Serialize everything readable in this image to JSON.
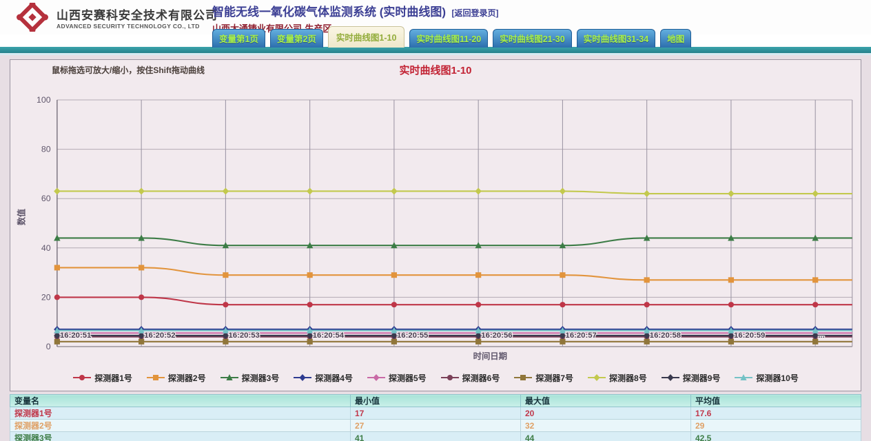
{
  "header": {
    "company_cn": "山西安赛科安全技术有限公司",
    "company_en": "ADVANCED SECURITY TECHNOLOGY CO., LTD",
    "title": "智能无线一氧化碳气体监测系统 (实时曲线图)",
    "back_link": "[返回登录页]",
    "subtitle": "山西大通铸业有限公司-生产区",
    "logo_color": "#b5313d"
  },
  "tabs": [
    {
      "key": "variables-page-1",
      "label": "变量第1页",
      "active": false
    },
    {
      "key": "variables-page-2",
      "label": "变量第2页",
      "active": false
    },
    {
      "key": "realtime-curve-1-10",
      "label": "实时曲线图1-10",
      "active": true
    },
    {
      "key": "realtime-curve-11-20",
      "label": "实时曲线图11-20",
      "active": false
    },
    {
      "key": "realtime-curve-21-30",
      "label": "实时曲线图21-30",
      "active": false
    },
    {
      "key": "realtime-curve-31-34",
      "label": "实时曲线图31-34",
      "active": false
    },
    {
      "key": "map",
      "label": "地图",
      "active": false
    }
  ],
  "chart": {
    "hint": "鼠标拖选可放大/缩小，按住Shift拖动曲线"
  },
  "chart_data": {
    "type": "line",
    "title": "实时曲线图1-10",
    "xlabel": "时间日期",
    "ylabel": "数值",
    "ylim": [
      0,
      100
    ],
    "yticks": [
      0,
      20,
      40,
      60,
      80,
      100
    ],
    "grid": true,
    "legend_position": "bottom",
    "x": [
      "16:20:51",
      "16:20:52",
      "16:20:53",
      "16:20:54",
      "16:20:55",
      "16:20:56",
      "16:20:57",
      "16:20:58",
      "16:20:59",
      "..."
    ],
    "series": [
      {
        "key": "detector-1",
        "name": "探测器1号",
        "color": "#bf3648",
        "marker": "circle",
        "values": [
          20,
          20,
          17,
          17,
          17,
          17,
          17,
          17,
          17,
          17
        ]
      },
      {
        "key": "detector-2",
        "name": "探测器2号",
        "color": "#e2943c",
        "marker": "square",
        "values": [
          32,
          32,
          29,
          29,
          29,
          29,
          29,
          27,
          27,
          27
        ]
      },
      {
        "key": "detector-3",
        "name": "探测器3号",
        "color": "#3c7c46",
        "marker": "triangle",
        "values": [
          44,
          44,
          41,
          41,
          41,
          41,
          41,
          44,
          44,
          44
        ]
      },
      {
        "key": "detector-4",
        "name": "探测器4号",
        "color": "#2e3b90",
        "marker": "diamond",
        "values": [
          7,
          7,
          7,
          7,
          7,
          7,
          7,
          7,
          7,
          7
        ]
      },
      {
        "key": "detector-5",
        "name": "探测器5号",
        "color": "#c96aa6",
        "marker": "diamond",
        "values": [
          5.5,
          5.5,
          5.5,
          5.5,
          5.5,
          5.5,
          5.5,
          5.5,
          5.5,
          5.5
        ]
      },
      {
        "key": "detector-6",
        "name": "探测器6号",
        "color": "#7b4058",
        "marker": "circle",
        "values": [
          4,
          4,
          4,
          4,
          4,
          4,
          4,
          4,
          4,
          4
        ]
      },
      {
        "key": "detector-7",
        "name": "探测器7号",
        "color": "#90763a",
        "marker": "square",
        "values": [
          2,
          2,
          2,
          2,
          2,
          2,
          2,
          2,
          2,
          2
        ]
      },
      {
        "key": "detector-8",
        "name": "探测器8号",
        "color": "#c3c94e",
        "marker": "diamond",
        "values": [
          63,
          63,
          63,
          63,
          63,
          63,
          63,
          62,
          62,
          62
        ]
      },
      {
        "key": "detector-9",
        "name": "探测器9号",
        "color": "#3a3a4e",
        "marker": "diamond",
        "values": [
          4.5,
          4.5,
          4.5,
          4.5,
          4.5,
          4.5,
          4.5,
          4.5,
          4.5,
          4.5
        ]
      },
      {
        "key": "detector-10",
        "name": "探测器10号",
        "color": "#74c2c6",
        "marker": "triangle",
        "values": [
          6.5,
          6.5,
          6.5,
          6.5,
          6.5,
          6.5,
          6.5,
          6.5,
          6.5,
          6.5
        ]
      }
    ]
  },
  "table": {
    "columns": [
      "变量名",
      "最小值",
      "最大值",
      "平均值"
    ],
    "rows": [
      {
        "key": "detector-1",
        "name": "探测器1号",
        "min": "17",
        "max": "20",
        "avg": "17.6",
        "color": "#c0374a"
      },
      {
        "key": "detector-2",
        "name": "探测器2号",
        "min": "27",
        "max": "32",
        "avg": "29",
        "color": "#dfa065"
      },
      {
        "key": "detector-3",
        "name": "探测器3号",
        "min": "41",
        "max": "44",
        "avg": "42.5",
        "color": "#3e7d46"
      }
    ]
  }
}
